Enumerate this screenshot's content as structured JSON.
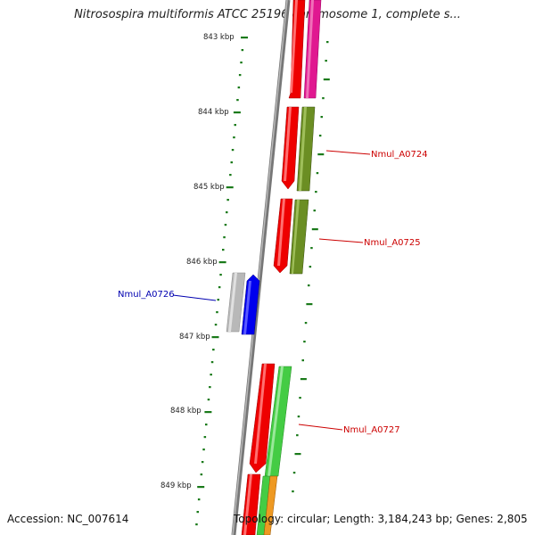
{
  "title": "Nitrosospira multiformis ATCC 25196 chromosome 1, complete s...",
  "footer": {
    "accession": "Accession: NC_007614",
    "summary": "Topology: circular; Length: 3,184,243 bp; Genes: 2,805"
  },
  "ticks": [
    "843 kbp",
    "844 kbp",
    "845 kbp",
    "846 kbp",
    "847 kbp",
    "848 kbp",
    "849 kbp"
  ],
  "genes": [
    {
      "label": "Nmul_A0724",
      "color": "#cc0000"
    },
    {
      "label": "Nmul_A0725",
      "color": "#cc0000"
    },
    {
      "label": "Nmul_A0726",
      "color": "#0000b0"
    },
    {
      "label": "Nmul_A0727",
      "color": "#cc0000"
    }
  ],
  "colors": {
    "backbone": "#808080",
    "tick": "#1a7a1a",
    "gene_forward": "#ee0000",
    "gene_selected": "#0000ee",
    "cds_magenta": "#e01890",
    "cds_olive": "#6b8e23",
    "cds_grey": "#b8b8b8",
    "cds_green": "#44cc44",
    "cds_orange": "#ee9922"
  }
}
